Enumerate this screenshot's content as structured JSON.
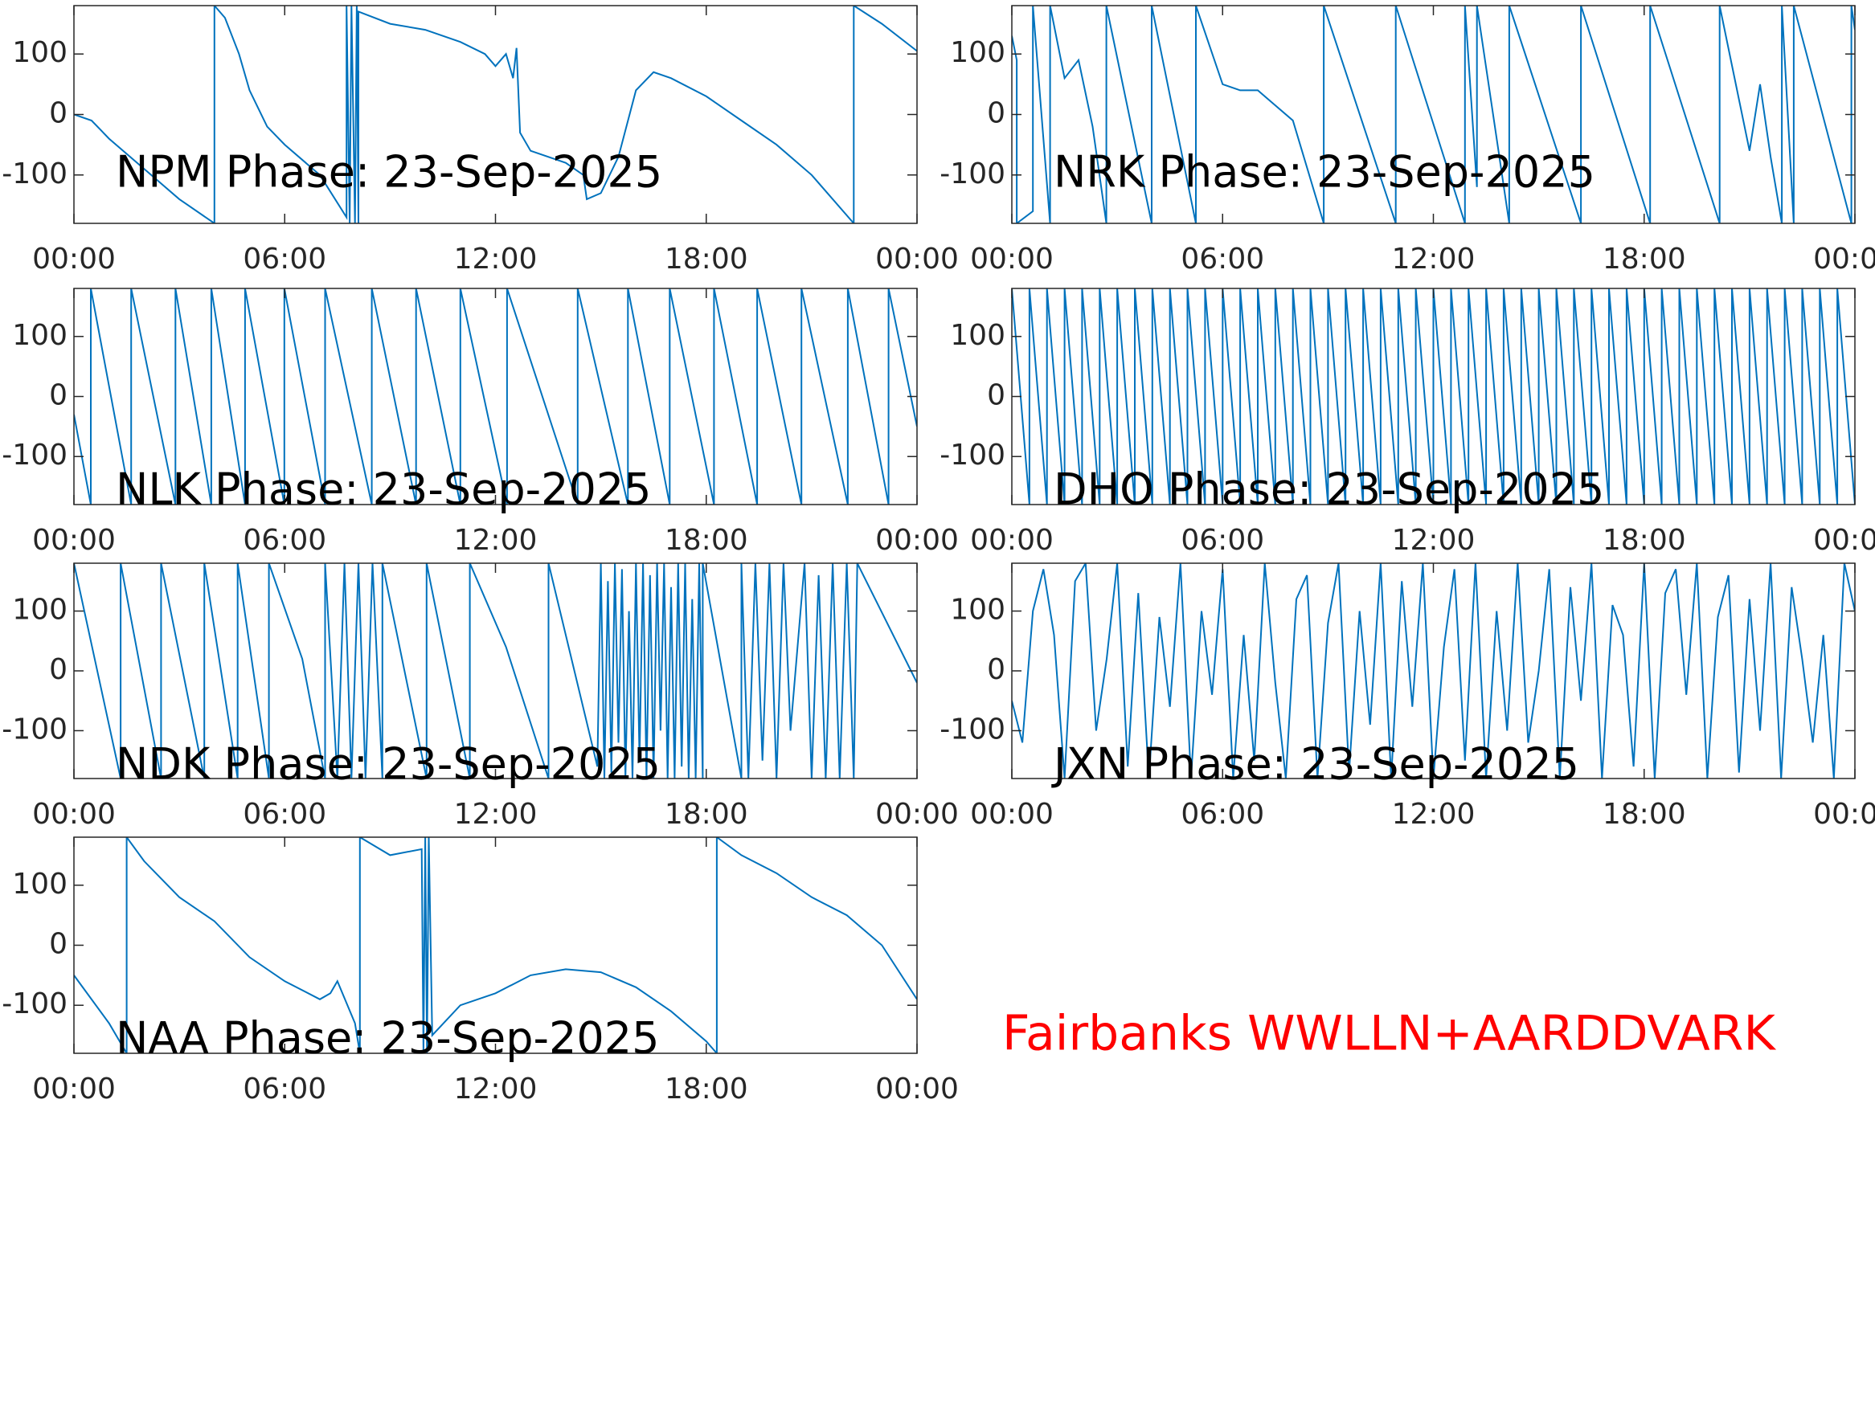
{
  "chart_data": [
    {
      "type": "line",
      "title": "NPM Phase: 23-Sep-2025",
      "color": "#0072bd",
      "x": [
        0,
        0.5,
        1,
        2,
        3,
        4.0,
        4.0,
        4.3,
        4.7,
        5,
        5.5,
        6,
        7,
        7.76,
        7.76,
        7.85,
        7.9,
        8.0,
        8.05,
        8.1,
        8.1,
        9,
        10,
        11,
        11.7,
        12,
        12.3,
        12.5,
        12.6,
        12.7,
        13,
        14,
        14.5,
        14.6,
        15,
        15.5,
        16,
        16.5,
        17,
        18,
        19,
        20,
        21,
        22.2,
        22.2,
        23,
        24
      ],
      "values": [
        0,
        -10,
        -40,
        -90,
        -140,
        -180,
        180,
        160,
        100,
        40,
        -20,
        -50,
        -100,
        -170,
        180,
        -180,
        180,
        -180,
        180,
        -180,
        170,
        150,
        140,
        120,
        100,
        80,
        100,
        60,
        110,
        -30,
        -60,
        -80,
        -100,
        -140,
        -130,
        -70,
        40,
        70,
        60,
        30,
        -10,
        -50,
        -100,
        -180,
        180,
        150,
        105
      ],
      "xlim": [
        0,
        24
      ],
      "ylim": [
        -180,
        180
      ],
      "xticks": [
        {
          "value": 0,
          "label": "00:00"
        },
        {
          "value": 6,
          "label": "06:00"
        },
        {
          "value": 12,
          "label": "12:00"
        },
        {
          "value": 18,
          "label": "18:00"
        },
        {
          "value": 24,
          "label": "00:00"
        }
      ],
      "yticks": [
        -100,
        0,
        100
      ]
    },
    {
      "type": "line",
      "title": "NRK Phase: 23-Sep-2025",
      "color": "#0072bd",
      "x": [
        0,
        0.14,
        0.14,
        0.6,
        0.6,
        1.09,
        1.09,
        1.5,
        1.9,
        2.3,
        2.69,
        2.69,
        3.98,
        3.98,
        5.24,
        5.24,
        6,
        6.5,
        7,
        8,
        8.88,
        8.88,
        10.93,
        10.93,
        12.9,
        12.9,
        13.24,
        13.24,
        14.16,
        14.16,
        16.2,
        16.2,
        18.17,
        18.17,
        20.15,
        20.15,
        21.0,
        21.3,
        21.6,
        21.92,
        21.92,
        22.26,
        22.26,
        23.9,
        23.9,
        24
      ],
      "values": [
        130,
        90,
        -180,
        -160,
        180,
        -180,
        180,
        60,
        90,
        -20,
        -180,
        180,
        -180,
        180,
        -180,
        180,
        50,
        40,
        40,
        -10,
        -180,
        180,
        -180,
        180,
        -180,
        180,
        -120,
        180,
        -180,
        180,
        -180,
        180,
        -180,
        180,
        -180,
        180,
        -60,
        50,
        -70,
        -180,
        180,
        -180,
        180,
        -180,
        180,
        140
      ],
      "xlim": [
        0,
        24
      ],
      "ylim": [
        -180,
        180
      ],
      "xticks": [
        {
          "value": 0,
          "label": "00:00"
        },
        {
          "value": 6,
          "label": "06:00"
        },
        {
          "value": 12,
          "label": "12:00"
        },
        {
          "value": 18,
          "label": "18:00"
        },
        {
          "value": 24,
          "label": "00:00"
        }
      ],
      "yticks": [
        -100,
        0,
        100
      ]
    },
    {
      "type": "line",
      "title": "NLK Phase: 23-Sep-2025",
      "color": "#0072bd",
      "x": [
        0,
        0.48,
        0.48,
        1.63,
        1.63,
        2.89,
        2.89,
        3.91,
        3.91,
        4.87,
        4.87,
        5.99,
        5.99,
        7.15,
        7.15,
        8.48,
        8.48,
        9.74,
        9.74,
        11.0,
        11.0,
        12.33,
        12.33,
        14.34,
        14.34,
        15.77,
        15.77,
        16.96,
        16.96,
        18.22,
        18.22,
        19.45,
        19.45,
        20.71,
        20.71,
        22.03,
        22.03,
        23.19,
        23.19,
        24
      ],
      "values": [
        -30,
        -180,
        180,
        -180,
        180,
        -180,
        180,
        -180,
        180,
        -180,
        180,
        -180,
        180,
        -180,
        180,
        -180,
        180,
        -180,
        180,
        -180,
        180,
        -180,
        180,
        -180,
        180,
        -180,
        180,
        -180,
        180,
        -180,
        180,
        -180,
        180,
        -180,
        180,
        -180,
        180,
        -180,
        180,
        -50
      ],
      "xlim": [
        0,
        24
      ],
      "ylim": [
        -180,
        180
      ],
      "xticks": [
        {
          "value": 0,
          "label": "00:00"
        },
        {
          "value": 6,
          "label": "06:00"
        },
        {
          "value": 12,
          "label": "12:00"
        },
        {
          "value": 18,
          "label": "18:00"
        },
        {
          "value": 24,
          "label": "00:00"
        }
      ],
      "yticks": [
        -100,
        0,
        100
      ]
    },
    {
      "type": "line",
      "title": "DHO Phase: 23-Sep-2025",
      "color": "#0072bd",
      "x": [
        0,
        0.5,
        0.5,
        1,
        1,
        1.5,
        1.5,
        2,
        2,
        2.5,
        2.5,
        3,
        3,
        3.5,
        3.5,
        4,
        4,
        4.5,
        4.5,
        5,
        5,
        5.5,
        5.5,
        6,
        6,
        6.5,
        6.5,
        7,
        7,
        7.5,
        7.5,
        8,
        8,
        8.5,
        8.5,
        9,
        9,
        9.5,
        9.5,
        10,
        10,
        10.5,
        10.5,
        11,
        11,
        11.5,
        11.5,
        12,
        12,
        12.5,
        12.5,
        13,
        13,
        13.5,
        13.5,
        14,
        14,
        14.5,
        14.5,
        15,
        15,
        15.5,
        15.5,
        16,
        16,
        16.5,
        16.5,
        17,
        17,
        17.5,
        17.5,
        18,
        18,
        18.5,
        18.5,
        19,
        19,
        19.5,
        19.5,
        20,
        20,
        20.5,
        20.5,
        21,
        21,
        21.5,
        21.5,
        22,
        22,
        22.5,
        22.5,
        23,
        23,
        23.5,
        23.5,
        24
      ],
      "values": [
        180,
        -180,
        180,
        -180,
        180,
        -180,
        180,
        -180,
        180,
        -180,
        180,
        -180,
        180,
        -180,
        180,
        -180,
        180,
        -180,
        180,
        -180,
        180,
        -180,
        180,
        -180,
        180,
        -180,
        180,
        -180,
        180,
        -180,
        180,
        -180,
        180,
        -180,
        180,
        -180,
        180,
        -180,
        180,
        -180,
        180,
        -180,
        180,
        -180,
        180,
        -180,
        180,
        -180,
        180,
        -180,
        180,
        -180,
        180,
        -180,
        180,
        -180,
        180,
        -180,
        180,
        -180,
        180,
        -180,
        180,
        -180,
        180,
        -180,
        180,
        -180,
        180,
        -180,
        180,
        -180,
        180,
        -180,
        180,
        -180,
        180,
        -180,
        180,
        -180,
        180,
        -180,
        180,
        -180,
        180,
        -180,
        180,
        -180,
        180,
        -180,
        180,
        -180,
        180,
        -180,
        180,
        -180
      ],
      "xlim": [
        0,
        24
      ],
      "ylim": [
        -180,
        180
      ],
      "xticks": [
        {
          "value": 0,
          "label": "00:00"
        },
        {
          "value": 6,
          "label": "06:00"
        },
        {
          "value": 12,
          "label": "12:00"
        },
        {
          "value": 18,
          "label": "18:00"
        },
        {
          "value": 24,
          "label": "00:00"
        }
      ],
      "yticks": [
        -100,
        0,
        100
      ]
    },
    {
      "type": "line",
      "title": "NDK Phase: 23-Sep-2025",
      "color": "#0072bd",
      "x": [
        0,
        1.33,
        1.33,
        2.48,
        2.48,
        3.71,
        3.71,
        4.66,
        4.66,
        5.55,
        5.55,
        6.5,
        7.15,
        7.15,
        7.5,
        7.7,
        7.9,
        8.1,
        8.3,
        8.5,
        8.78,
        8.78,
        10.04,
        10.04,
        11.27,
        11.27,
        12.3,
        13.51,
        13.51,
        14.9,
        15.0,
        15.1,
        15.2,
        15.3,
        15.4,
        15.5,
        15.6,
        15.7,
        15.8,
        15.9,
        16.0,
        16.1,
        16.2,
        16.3,
        16.4,
        16.5,
        16.6,
        16.7,
        16.8,
        16.9,
        17.0,
        17.1,
        17.2,
        17.3,
        17.4,
        17.5,
        17.6,
        17.7,
        17.8,
        17.9,
        17.9,
        19.0,
        19.0,
        19.2,
        19.4,
        19.6,
        19.8,
        20.0,
        20.2,
        20.4,
        20.8,
        21.0,
        21.2,
        21.4,
        21.6,
        21.8,
        22.0,
        22.2,
        22.3,
        24
      ],
      "values": [
        180,
        -180,
        180,
        -180,
        180,
        -180,
        180,
        -180,
        180,
        -180,
        180,
        20,
        -180,
        180,
        -180,
        180,
        -180,
        180,
        -180,
        180,
        -180,
        180,
        -180,
        180,
        -180,
        180,
        40,
        -180,
        180,
        -160,
        180,
        -180,
        150,
        -170,
        180,
        -120,
        170,
        -180,
        100,
        -180,
        180,
        -150,
        180,
        -180,
        160,
        -180,
        180,
        -100,
        180,
        -180,
        140,
        -180,
        180,
        -160,
        180,
        -180,
        120,
        -180,
        180,
        -180,
        180,
        -180,
        180,
        -180,
        180,
        -150,
        180,
        -180,
        180,
        -100,
        180,
        -180,
        160,
        -180,
        180,
        -180,
        180,
        -180,
        180,
        -20
      ],
      "xlim": [
        0,
        24
      ],
      "ylim": [
        -180,
        180
      ],
      "xticks": [
        {
          "value": 0,
          "label": "00:00"
        },
        {
          "value": 6,
          "label": "06:00"
        },
        {
          "value": 12,
          "label": "12:00"
        },
        {
          "value": 18,
          "label": "18:00"
        },
        {
          "value": 24,
          "label": "00:00"
        }
      ],
      "yticks": [
        -100,
        0,
        100
      ]
    },
    {
      "type": "line",
      "title": "JXN Phase: 23-Sep-2025",
      "color": "#0072bd",
      "x": [
        0,
        0.3,
        0.6,
        0.9,
        1.2,
        1.5,
        1.8,
        2.1,
        2.4,
        2.7,
        3,
        3.3,
        3.6,
        3.9,
        4.2,
        4.5,
        4.8,
        5.1,
        5.4,
        5.7,
        6,
        6.3,
        6.6,
        6.9,
        7.2,
        7.5,
        7.8,
        8.1,
        8.4,
        8.7,
        9,
        9.3,
        9.6,
        9.9,
        10.2,
        10.5,
        10.8,
        11.1,
        11.4,
        11.7,
        12,
        12.3,
        12.6,
        12.9,
        13.2,
        13.5,
        13.8,
        14.1,
        14.4,
        14.7,
        15,
        15.3,
        15.6,
        15.9,
        16.2,
        16.5,
        16.8,
        17.1,
        17.4,
        17.7,
        18,
        18.3,
        18.6,
        18.9,
        19.2,
        19.5,
        19.8,
        20.1,
        20.4,
        20.7,
        21,
        21.3,
        21.6,
        21.9,
        22.2,
        22.5,
        22.8,
        23.1,
        23.4,
        23.7,
        24
      ],
      "values": [
        -50,
        -120,
        100,
        170,
        60,
        -180,
        150,
        180,
        -100,
        20,
        180,
        -160,
        130,
        -180,
        90,
        -60,
        180,
        -180,
        100,
        -40,
        170,
        -180,
        60,
        -150,
        180,
        -20,
        -180,
        120,
        160,
        -180,
        80,
        180,
        -170,
        100,
        -90,
        180,
        -180,
        150,
        -60,
        180,
        -180,
        40,
        170,
        -150,
        180,
        -180,
        100,
        -100,
        180,
        -120,
        0,
        170,
        -180,
        140,
        -50,
        180,
        -180,
        110,
        60,
        -160,
        180,
        -180,
        130,
        170,
        -40,
        180,
        -180,
        90,
        160,
        -170,
        120,
        -100,
        180,
        -180,
        140,
        20,
        -120,
        60,
        -180,
        180,
        100
      ],
      "xlim": [
        0,
        24
      ],
      "ylim": [
        -180,
        180
      ],
      "xticks": [
        {
          "value": 0,
          "label": "00:00"
        },
        {
          "value": 6,
          "label": "06:00"
        },
        {
          "value": 12,
          "label": "12:00"
        },
        {
          "value": 18,
          "label": "18:00"
        },
        {
          "value": 24,
          "label": "00:00"
        }
      ],
      "yticks": [
        -100,
        0,
        100
      ]
    },
    {
      "type": "line",
      "title": "NAA Phase: 23-Sep-2025",
      "color": "#0072bd",
      "x": [
        0,
        1,
        1.5,
        1.5,
        2,
        3,
        4,
        5,
        6,
        7,
        7.3,
        7.5,
        8,
        8.14,
        8.14,
        9,
        9.9,
        9.95,
        10.0,
        10.05,
        10.1,
        10.2,
        11,
        12,
        13,
        14,
        15,
        16,
        17,
        18,
        18.3,
        18.3,
        19,
        20,
        21,
        22,
        23,
        24
      ],
      "values": [
        -50,
        -130,
        -180,
        180,
        140,
        80,
        40,
        -20,
        -60,
        -90,
        -80,
        -60,
        -130,
        -180,
        180,
        150,
        160,
        -180,
        180,
        -180,
        180,
        -150,
        -100,
        -80,
        -50,
        -40,
        -45,
        -70,
        -110,
        -160,
        -180,
        180,
        150,
        120,
        80,
        50,
        0,
        -90
      ],
      "xlim": [
        0,
        24
      ],
      "ylim": [
        -180,
        180
      ],
      "xticks": [
        {
          "value": 0,
          "label": "00:00"
        },
        {
          "value": 6,
          "label": "06:00"
        },
        {
          "value": 12,
          "label": "12:00"
        },
        {
          "value": 18,
          "label": "18:00"
        },
        {
          "value": 24,
          "label": "00:00"
        }
      ],
      "yticks": [
        -100,
        0,
        100
      ]
    }
  ],
  "annotation": "Fairbanks WWLLN+AARDDVARK"
}
